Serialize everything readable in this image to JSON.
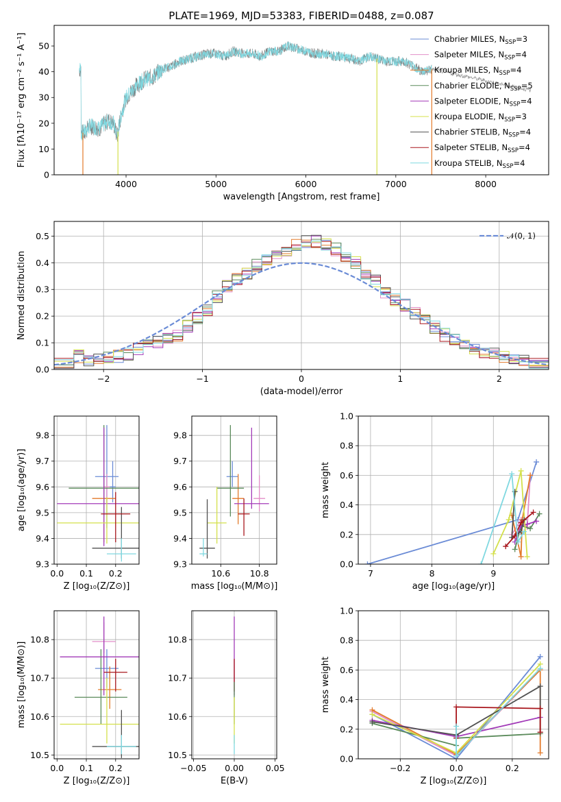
{
  "chart_data": [
    {
      "id": "spectrum",
      "type": "line",
      "title": "PLATE=1969, MJD=53383, FIBERID=0488, z=0.087",
      "xlabel": "wavelength [Angstrom, rest frame]",
      "ylabel": "Flux [fλ10⁻¹⁷ erg cm⁻² s⁻¹ A⁻¹]",
      "xlim": [
        3200,
        8700
      ],
      "ylim": [
        0,
        58
      ],
      "xticks": [
        4000,
        5000,
        6000,
        7000,
        8000
      ],
      "yticks": [
        0,
        10,
        20,
        30,
        40,
        50
      ],
      "grid": false,
      "legend_position": "top-right",
      "data_envelope": {
        "x": [
          3500,
          3550,
          3600,
          3700,
          3800,
          3860,
          3900,
          3950,
          4000,
          4100,
          4200,
          4300,
          4400,
          4500,
          4600,
          4700,
          4800,
          4900,
          5000,
          5100,
          5200,
          5300,
          5400,
          5500,
          5600,
          5700,
          5800,
          5900,
          6000,
          6100,
          6200,
          6300,
          6400,
          6500,
          6600,
          6700,
          6800,
          6900,
          7000,
          7100,
          7200,
          7300,
          7400
        ],
        "y": [
          16,
          17,
          19,
          18,
          21,
          20,
          15,
          24,
          30,
          34,
          37,
          38,
          41,
          42,
          44,
          45,
          46,
          47,
          47,
          46,
          48,
          47,
          47,
          46,
          48,
          48,
          50,
          49,
          48,
          47,
          47,
          46,
          46,
          45,
          44,
          46,
          45,
          44,
          44,
          44,
          42,
          40,
          41
        ]
      },
      "series": [
        {
          "name": "Chabrier MILES, N_SSP=3",
          "color": "#6a8bd6"
        },
        {
          "name": "Salpeter MILES, N_SSP=4",
          "color": "#e38ec8"
        },
        {
          "name": "Kroupa MILES, N_SSP=4",
          "color": "#e37a2a"
        },
        {
          "name": "Chabrier ELODIE, N_SSP=5",
          "color": "#5a8a5a"
        },
        {
          "name": "Salpeter ELODIE, N_SSP=4",
          "color": "#a23ab8"
        },
        {
          "name": "Kroupa ELODIE, N_SSP=3",
          "color": "#d4e04a"
        },
        {
          "name": "Chabrier STELIB, N_SSP=4",
          "color": "#505050"
        },
        {
          "name": "Salpeter STELIB, N_SSP=4",
          "color": "#a8161c"
        },
        {
          "name": "Kroupa STELIB, N_SSP=4",
          "color": "#7fd8e0"
        }
      ],
      "legend_labels": [
        {
          "pre": "Chabrier MILES, N",
          "sub": "SSP",
          "post": "=3"
        },
        {
          "pre": "Salpeter MILES, N",
          "sub": "SSP",
          "post": "=4"
        },
        {
          "pre": "Kroupa MILES, N",
          "sub": "SSP",
          "post": "=4"
        },
        {
          "pre": "Chabrier ELODIE, N",
          "sub": "SSP",
          "post": "=5"
        },
        {
          "pre": "Salpeter ELODIE, N",
          "sub": "SSP",
          "post": "=4"
        },
        {
          "pre": "Kroupa ELODIE, N",
          "sub": "SSP",
          "post": "=3"
        },
        {
          "pre": "Chabrier STELIB, N",
          "sub": "SSP",
          "post": "=4"
        },
        {
          "pre": "Salpeter STELIB, N",
          "sub": "SSP",
          "post": "=4"
        },
        {
          "pre": "Kroupa STELIB, N",
          "sub": "SSP",
          "post": "=4"
        }
      ]
    },
    {
      "id": "residuals",
      "type": "line",
      "xlabel": "(data-model)/error",
      "ylabel": "Normed distribution",
      "xlim": [
        -2.5,
        2.5
      ],
      "ylim": [
        0,
        0.555
      ],
      "xticks": [
        -2,
        -1,
        0,
        1,
        2
      ],
      "xtick_labels": [
        "−2",
        "−1",
        "0",
        "1",
        "2"
      ],
      "yticks": [
        0.0,
        0.1,
        0.2,
        0.3,
        0.4,
        0.5
      ],
      "ytick_labels": [
        "0.0",
        "0.1",
        "0.2",
        "0.3",
        "0.4",
        "0.5"
      ],
      "grid": true,
      "legend_position": "top-right",
      "legend_label": "𝒩(0, 1)",
      "normal_color": "#6a8bd6",
      "bin_edges": [
        -2.5,
        -2.3,
        -2.2,
        -2.1,
        -2.0,
        -1.9,
        -1.8,
        -1.7,
        -1.6,
        -1.5,
        -1.4,
        -1.3,
        -1.2,
        -1.1,
        -1.0,
        -0.9,
        -0.8,
        -0.7,
        -0.6,
        -0.5,
        -0.4,
        -0.3,
        -0.2,
        -0.1,
        0.0,
        0.1,
        0.2,
        0.3,
        0.4,
        0.5,
        0.6,
        0.7,
        0.8,
        0.9,
        1.0,
        1.1,
        1.2,
        1.3,
        1.4,
        1.5,
        1.6,
        1.7,
        1.8,
        1.9,
        2.0,
        2.1,
        2.2,
        2.3,
        2.5
      ],
      "hist_base": [
        0.02,
        0.05,
        0.035,
        0.04,
        0.045,
        0.05,
        0.06,
        0.08,
        0.09,
        0.1,
        0.12,
        0.13,
        0.16,
        0.19,
        0.22,
        0.27,
        0.31,
        0.34,
        0.36,
        0.39,
        0.41,
        0.43,
        0.45,
        0.47,
        0.48,
        0.48,
        0.47,
        0.45,
        0.43,
        0.4,
        0.36,
        0.33,
        0.29,
        0.26,
        0.24,
        0.21,
        0.18,
        0.16,
        0.13,
        0.11,
        0.09,
        0.07,
        0.065,
        0.055,
        0.045,
        0.035,
        0.03,
        0.02
      ],
      "normal_curve": {
        "mean": 0,
        "sigma": 1
      }
    },
    {
      "id": "age-vs-Z",
      "type": "scatter",
      "xlabel": "Z [log₁₀(Z/Z⊙)]",
      "ylabel": "age  [log₁₀(age/yr)]",
      "xlim": [
        -0.01,
        0.28
      ],
      "ylim": [
        9.3,
        9.875
      ],
      "xticks": [
        0.0,
        0.1,
        0.2
      ],
      "xtick_labels": [
        "0.0",
        "0.1",
        "0.2"
      ],
      "yticks": [
        9.3,
        9.4,
        9.5,
        9.6,
        9.7,
        9.8
      ],
      "ytick_labels": [
        "9.3",
        "9.4",
        "9.5",
        "9.6",
        "9.7",
        "9.8"
      ],
      "grid": true,
      "points": [
        {
          "x": 0.17,
          "xerr": 0.04,
          "y": 9.64,
          "yerr_lo": 0.2,
          "yerr_hi": 0.2,
          "color": "#6a8bd6"
        },
        {
          "x": 0.19,
          "xerr": 0.01,
          "y": 9.6,
          "yerr_lo": 0.06,
          "yerr_hi": 0.1,
          "color": "#6a8bd6"
        },
        {
          "x": 0.17,
          "xerr": 0.01,
          "y": 9.6,
          "yerr_lo": 0.06,
          "yerr_hi": 0.05,
          "color": "#e38ec8"
        },
        {
          "x": 0.16,
          "xerr": 0.04,
          "y": 9.555,
          "yerr_lo": 0.17,
          "yerr_hi": 0.095,
          "color": "#e37a2a"
        },
        {
          "x": 0.16,
          "xerr": 0.12,
          "y": 9.595,
          "yerr_lo": 0.11,
          "yerr_hi": 0.245,
          "color": "#5a8a5a"
        },
        {
          "x": 0.16,
          "xerr": 0.16,
          "y": 9.535,
          "yerr_lo": 0.165,
          "yerr_hi": 0.295,
          "color": "#a23ab8"
        },
        {
          "x": 0.17,
          "xerr": 0.17,
          "y": 9.46,
          "yerr_lo": 0.08,
          "yerr_hi": 0.1,
          "color": "#d4e04a"
        },
        {
          "x": 0.22,
          "xerr": 0.1,
          "y": 9.362,
          "yerr_lo": 0.04,
          "yerr_hi": 0.16,
          "color": "#505050"
        },
        {
          "x": 0.2,
          "xerr": 0.05,
          "y": 9.495,
          "yerr_lo": 0.11,
          "yerr_hi": 0.085,
          "color": "#a8161c"
        },
        {
          "x": 0.22,
          "xerr": 0.05,
          "y": 9.34,
          "yerr_lo": 0.03,
          "yerr_hi": 0.06,
          "color": "#7fd8e0"
        }
      ]
    },
    {
      "id": "age-vs-mass",
      "type": "scatter",
      "xlabel": "mass [log₁₀(M/M⊙)]",
      "xlim": [
        10.45,
        10.89
      ],
      "ylim": [
        9.3,
        9.875
      ],
      "xticks": [
        10.6,
        10.8
      ],
      "xtick_labels": [
        "10.6",
        "10.8"
      ],
      "yticks": [
        9.3,
        9.4,
        9.5,
        9.6,
        9.7,
        9.8
      ],
      "ytick_labels": [
        "9.3",
        "9.4",
        "9.5",
        "9.6",
        "9.7",
        "9.8"
      ],
      "grid": true,
      "points": [
        {
          "x": 10.66,
          "xerr": 0.03,
          "y": 9.64,
          "yerr_lo": 0.04,
          "yerr_hi": 0.06,
          "color": "#6a8bd6"
        },
        {
          "x": 10.8,
          "xerr": 0.03,
          "y": 9.555,
          "yerr_lo": 0.05,
          "yerr_hi": 0.09,
          "color": "#e38ec8"
        },
        {
          "x": 10.69,
          "xerr": 0.03,
          "y": 9.555,
          "yerr_lo": 0.1,
          "yerr_hi": 0.095,
          "color": "#e37a2a"
        },
        {
          "x": 10.65,
          "xerr": 0.07,
          "y": 9.595,
          "yerr_lo": 0.11,
          "yerr_hi": 0.245,
          "color": "#5a8a5a"
        },
        {
          "x": 10.76,
          "xerr": 0.09,
          "y": 9.535,
          "yerr_lo": 0.02,
          "yerr_hi": 0.295,
          "color": "#a23ab8"
        },
        {
          "x": 10.58,
          "xerr": 0.05,
          "y": 9.46,
          "yerr_lo": 0.08,
          "yerr_hi": 0.14,
          "color": "#d4e04a"
        },
        {
          "x": 10.53,
          "xerr": 0.04,
          "y": 9.362,
          "yerr_lo": 0.04,
          "yerr_hi": 0.19,
          "color": "#505050"
        },
        {
          "x": 10.72,
          "xerr": 0.03,
          "y": 9.495,
          "yerr_lo": 0.085,
          "yerr_hi": 0.06,
          "color": "#a8161c"
        },
        {
          "x": 10.51,
          "xerr": 0.02,
          "y": 9.34,
          "yerr_lo": 0.01,
          "yerr_hi": 0.06,
          "color": "#7fd8e0"
        }
      ]
    },
    {
      "id": "weight-vs-age",
      "type": "line",
      "xlabel": "age  [log₁₀(age/yr)]",
      "ylabel": "mass weight",
      "xlim": [
        6.8,
        9.9
      ],
      "ylim": [
        0,
        1.0
      ],
      "xticks": [
        7,
        8,
        9
      ],
      "xtick_labels": [
        "7",
        "8",
        "9"
      ],
      "yticks": [
        0.0,
        0.2,
        0.4,
        0.6,
        0.8,
        1.0
      ],
      "ytick_labels": [
        "0.0",
        "0.2",
        "0.4",
        "0.6",
        "0.8",
        "1.0"
      ],
      "grid": true,
      "series": [
        {
          "color": "#6a8bd6",
          "x": [
            6.95,
            9.4,
            9.7
          ],
          "y": [
            0.0,
            0.3,
            0.69
          ]
        },
        {
          "color": "#e38ec8",
          "x": [
            9.3,
            9.45,
            9.55,
            9.6
          ],
          "y": [
            0.2,
            0.3,
            0.25,
            0.6
          ]
        },
        {
          "color": "#e37a2a",
          "x": [
            9.3,
            9.45,
            9.47,
            9.6
          ],
          "y": [
            0.33,
            0.05,
            0.3,
            0.6
          ]
        },
        {
          "color": "#5a8a5a",
          "x": [
            9.35,
            9.45,
            9.6,
            9.75
          ],
          "y": [
            0.1,
            0.26,
            0.24,
            0.34
          ]
        },
        {
          "color": "#a23ab8",
          "x": [
            9.35,
            9.45,
            9.55,
            9.7
          ],
          "y": [
            0.15,
            0.26,
            0.27,
            0.29
          ]
        },
        {
          "color": "#d4e04a",
          "x": [
            9.0,
            9.25,
            9.45,
            9.55
          ],
          "y": [
            0.07,
            0.3,
            0.63,
            0.05
          ]
        },
        {
          "color": "#505050",
          "x": [
            9.35,
            9.3,
            9.45,
            9.5
          ],
          "y": [
            0.49,
            0.18,
            0.22,
            0.3
          ]
        },
        {
          "color": "#a8161c",
          "x": [
            9.2,
            9.35,
            9.45,
            9.65
          ],
          "y": [
            0.12,
            0.19,
            0.28,
            0.35
          ]
        },
        {
          "color": "#7fd8e0",
          "x": [
            8.8,
            9.3,
            9.4,
            9.5
          ],
          "y": [
            0.0,
            0.61,
            0.15,
            0.22
          ]
        }
      ]
    },
    {
      "id": "mass-vs-Z",
      "type": "scatter",
      "xlabel": "Z [log₁₀(Z/Z⊙)]",
      "ylabel": "mass [log₁₀(M/M⊙)]",
      "xlim": [
        -0.01,
        0.28
      ],
      "ylim": [
        10.49,
        10.875
      ],
      "xticks": [
        0.0,
        0.1,
        0.2
      ],
      "xtick_labels": [
        "0.0",
        "0.1",
        "0.2"
      ],
      "yticks": [
        10.5,
        10.6,
        10.7,
        10.8
      ],
      "ytick_labels": [
        "10.5",
        "10.6",
        "10.7",
        "10.8"
      ],
      "grid": true,
      "points": [
        {
          "x": 0.17,
          "xerr": 0.04,
          "y": 10.725,
          "yerr_lo": 0.05,
          "yerr_hi": 0.05,
          "color": "#6a8bd6"
        },
        {
          "x": 0.16,
          "xerr": 0.04,
          "y": 10.795,
          "yerr_lo": 0.03,
          "yerr_hi": 0.05,
          "color": "#e38ec8"
        },
        {
          "x": 0.18,
          "xerr": 0.04,
          "y": 10.67,
          "yerr_lo": 0.05,
          "yerr_hi": 0.06,
          "color": "#e37a2a"
        },
        {
          "x": 0.15,
          "xerr": 0.09,
          "y": 10.65,
          "yerr_lo": 0.07,
          "yerr_hi": 0.125,
          "color": "#5a8a5a"
        },
        {
          "x": 0.16,
          "xerr": 0.15,
          "y": 10.755,
          "yerr_lo": 0.1,
          "yerr_hi": 0.105,
          "color": "#a23ab8"
        },
        {
          "x": 0.17,
          "xerr": 0.16,
          "y": 10.58,
          "yerr_lo": 0.05,
          "yerr_hi": 0.12,
          "color": "#d4e04a"
        },
        {
          "x": 0.22,
          "xerr": 0.1,
          "y": 10.522,
          "yerr_lo": 0.03,
          "yerr_hi": 0.095,
          "color": "#505050"
        },
        {
          "x": 0.2,
          "xerr": 0.04,
          "y": 10.715,
          "yerr_lo": 0.05,
          "yerr_hi": 0.035,
          "color": "#a8161c"
        },
        {
          "x": 0.22,
          "xerr": 0.05,
          "y": 10.522,
          "yerr_lo": 0.02,
          "yerr_hi": 0.03,
          "color": "#7fd8e0"
        }
      ]
    },
    {
      "id": "mass-vs-EBV",
      "type": "scatter",
      "xlabel": "E(B-V)",
      "xlim": [
        -0.052,
        0.052
      ],
      "ylim": [
        10.49,
        10.875
      ],
      "xticks": [
        -0.05,
        0.0,
        0.05
      ],
      "xtick_labels": [
        "−0.05",
        "0.00",
        "0.05"
      ],
      "yticks": [
        10.5,
        10.6,
        10.7,
        10.8
      ],
      "ytick_labels": [
        "10.5",
        "10.6",
        "10.7",
        "10.8"
      ],
      "grid": true,
      "points": [
        {
          "x": 0.0,
          "xerr": 0,
          "y": 10.755,
          "yerr_lo": 0.1,
          "yerr_hi": 0.105,
          "color": "#a23ab8"
        },
        {
          "x": 0.0,
          "xerr": 0,
          "y": 10.715,
          "yerr_lo": 0.05,
          "yerr_hi": 0.035,
          "color": "#a8161c"
        },
        {
          "x": 0.0,
          "xerr": 0,
          "y": 10.65,
          "yerr_lo": 0.07,
          "yerr_hi": 0.04,
          "color": "#5a8a5a"
        },
        {
          "x": 0.0,
          "xerr": 0,
          "y": 10.58,
          "yerr_lo": 0.05,
          "yerr_hi": 0.07,
          "color": "#d4e04a"
        },
        {
          "x": 0.0,
          "xerr": 0,
          "y": 10.522,
          "yerr_lo": 0.02,
          "yerr_hi": 0.03,
          "color": "#7fd8e0"
        }
      ]
    },
    {
      "id": "weight-vs-Z",
      "type": "line",
      "xlabel": "Z [log₁₀(Z/Z⊙)]",
      "ylabel": "mass weight",
      "xlim": [
        -0.35,
        0.33
      ],
      "ylim": [
        0,
        1.0
      ],
      "xticks": [
        -0.2,
        0.0,
        0.2
      ],
      "xtick_labels": [
        "−0.2",
        "0.0",
        "0.2"
      ],
      "yticks": [
        0.0,
        0.2,
        0.4,
        0.6,
        0.8,
        1.0
      ],
      "ytick_labels": [
        "0.0",
        "0.2",
        "0.4",
        "0.6",
        "0.8",
        "1.0"
      ],
      "grid": true,
      "series": [
        {
          "color": "#6a8bd6",
          "x": [
            -0.3,
            0.0,
            0.3
          ],
          "y": [
            0.3,
            0.0,
            0.69
          ]
        },
        {
          "color": "#e38ec8",
          "x": [
            -0.3,
            0.0,
            0.3
          ],
          "y": [
            0.32,
            0.02,
            0.6
          ]
        },
        {
          "color": "#e37a2a",
          "x": [
            -0.3,
            0.0,
            0.3,
            0.3
          ],
          "y": [
            0.33,
            0.03,
            0.6,
            0.04
          ]
        },
        {
          "color": "#5a8a5a",
          "x": [
            -0.3,
            0.0,
            0.0,
            0.3
          ],
          "y": [
            0.24,
            0.09,
            0.14,
            0.17
          ]
        },
        {
          "color": "#a23ab8",
          "x": [
            -0.3,
            0.0,
            0.3
          ],
          "y": [
            0.26,
            0.15,
            0.28
          ]
        },
        {
          "color": "#d4e04a",
          "x": [
            -0.3,
            0.0,
            0.3
          ],
          "y": [
            0.3,
            0.04,
            0.64
          ]
        },
        {
          "color": "#505050",
          "x": [
            -0.3,
            0.0,
            0.3,
            0.3
          ],
          "y": [
            0.25,
            0.16,
            0.49,
            0.18
          ]
        },
        {
          "color": "#a8161c",
          "x": [
            0.0,
            0.0,
            0.3,
            0.3
          ],
          "y": [
            0.14,
            0.35,
            0.34,
            0.18
          ]
        },
        {
          "color": "#7fd8e0",
          "x": [
            0.0,
            0.0,
            0.3
          ],
          "y": [
            0.22,
            0.02,
            0.61
          ]
        }
      ]
    }
  ]
}
